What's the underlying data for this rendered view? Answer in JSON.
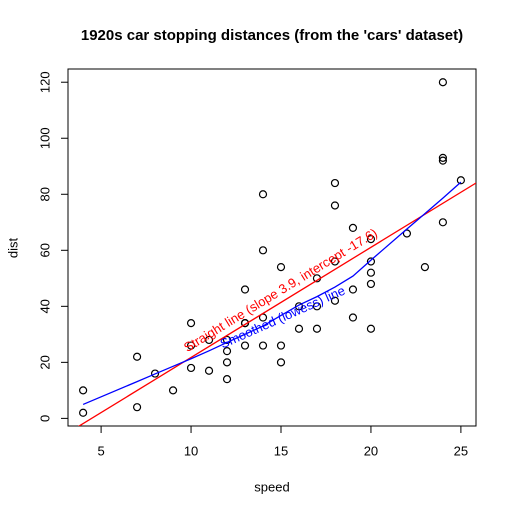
{
  "chart_data": {
    "type": "scatter",
    "title": "1920s car stopping distances (from the 'cars' dataset)",
    "xlabel": "speed",
    "ylabel": "dist",
    "x": [
      4,
      4,
      7,
      7,
      8,
      9,
      10,
      10,
      10,
      11,
      11,
      12,
      12,
      12,
      12,
      13,
      13,
      13,
      13,
      14,
      14,
      14,
      14,
      15,
      15,
      15,
      16,
      16,
      17,
      17,
      17,
      18,
      18,
      18,
      18,
      19,
      19,
      19,
      20,
      20,
      20,
      20,
      20,
      22,
      23,
      24,
      24,
      24,
      24,
      25
    ],
    "values": [
      2,
      10,
      4,
      22,
      16,
      10,
      18,
      26,
      34,
      17,
      28,
      14,
      20,
      24,
      28,
      26,
      34,
      34,
      46,
      26,
      36,
      60,
      80,
      20,
      26,
      54,
      32,
      40,
      32,
      40,
      50,
      42,
      56,
      76,
      84,
      36,
      46,
      68,
      32,
      48,
      52,
      56,
      64,
      66,
      54,
      70,
      92,
      93,
      120,
      85
    ],
    "color": "#000000",
    "xlim": [
      3.16,
      25.84
    ],
    "ylim": [
      -2.72,
      124.72
    ],
    "xticks": [
      5,
      10,
      15,
      20,
      25
    ],
    "yticks": [
      0,
      20,
      40,
      60,
      80,
      100,
      120
    ],
    "regression": {
      "slope": 3.932,
      "intercept": -17.579,
      "color": "#ff0000",
      "label": "Straight line (slope 3.9, intercept -17.6)"
    },
    "lowess": {
      "x": [
        4,
        7,
        8,
        9,
        10,
        11,
        12,
        13,
        14,
        15,
        16,
        17,
        18,
        19,
        20,
        22,
        23,
        24,
        25
      ],
      "values": [
        4.97,
        13.12,
        15.86,
        18.58,
        21.28,
        24.13,
        27.12,
        30.03,
        32.96,
        36.76,
        40.44,
        43.46,
        46.89,
        50.79,
        56.49,
        67.59,
        73.08,
        78.64,
        84.33
      ],
      "color": "#0000ff",
      "label": "Smoothed (lowess) line"
    }
  }
}
